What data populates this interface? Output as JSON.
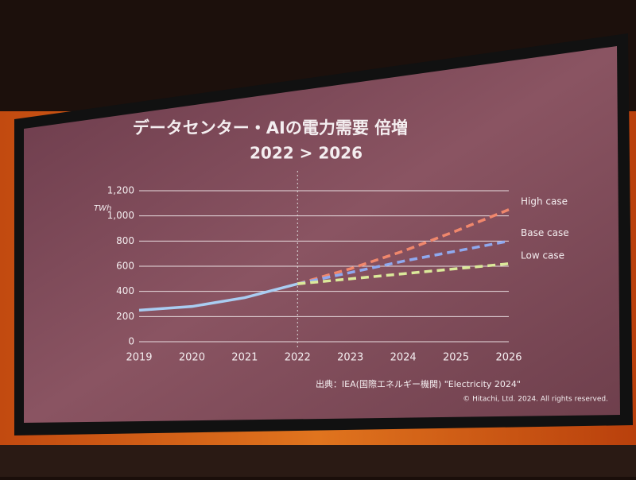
{
  "chart_data": {
    "type": "line",
    "title": "データセンター・AIの電力需要 倍増",
    "subtitle": "2022 > 2026",
    "y_label": "TWh",
    "x": [
      2019,
      2020,
      2021,
      2022,
      2023,
      2024,
      2025,
      2026
    ],
    "xlim": [
      2019,
      2026
    ],
    "xticks": [
      2019,
      2020,
      2021,
      2022,
      2023,
      2024,
      2025,
      2026
    ],
    "ylim": [
      0,
      1200
    ],
    "yticks": [
      0,
      200,
      400,
      600,
      800,
      {
        "value": 1000,
        "label": "1,000"
      },
      {
        "value": 1200,
        "label": "1,200"
      }
    ],
    "grid": true,
    "vline": 2022,
    "series": [
      {
        "color": "#a9cdf2",
        "dashed": false,
        "values": [
          250,
          280,
          350,
          460,
          null,
          null,
          null,
          null
        ]
      },
      {
        "name": "High case",
        "color": "#f0876c",
        "dashed": true,
        "values": [
          null,
          null,
          null,
          460,
          580,
          720,
          880,
          1050
        ]
      },
      {
        "name": "Base case",
        "color": "#8fa9ef",
        "dashed": true,
        "values": [
          null,
          null,
          null,
          460,
          550,
          640,
          720,
          800
        ]
      },
      {
        "name": "Low case",
        "color": "#dbe99a",
        "dashed": true,
        "values": [
          null,
          null,
          null,
          460,
          500,
          540,
          580,
          620
        ]
      }
    ],
    "annotations": [
      "出典：IEA(国際エネルギー機関) \"Electricity 2024\"",
      "© Hitachi, Ltd. 2024. All rights reserved."
    ]
  }
}
